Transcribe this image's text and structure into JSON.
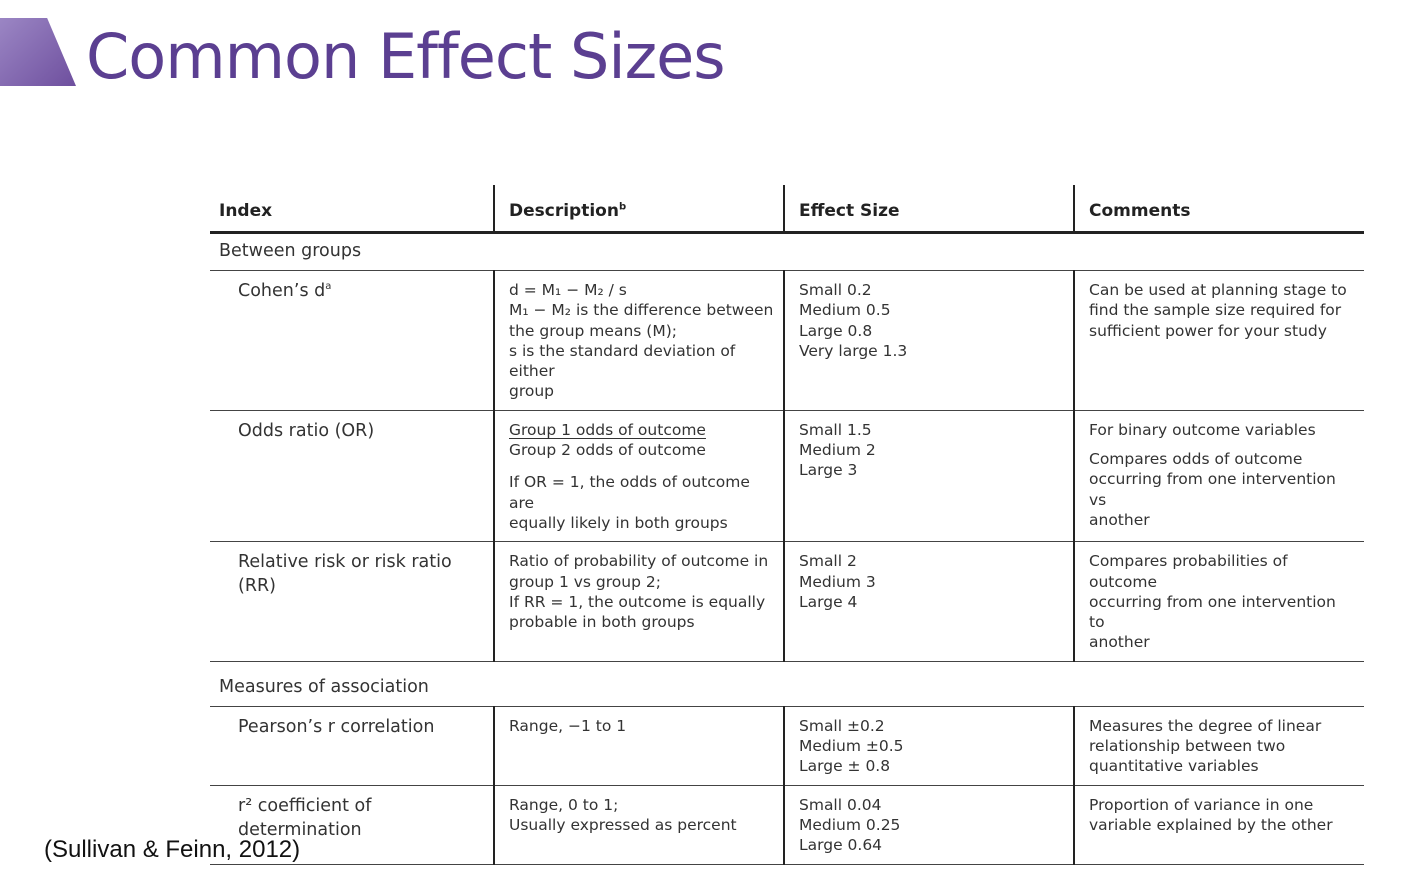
{
  "title": "Common Effect Sizes",
  "citation": "(Sullivan & Feinn, 2012)",
  "colors": {
    "title": "#5b3f91",
    "accent_shape": "#7c5fae"
  },
  "table": {
    "headers": [
      "Index",
      "Description",
      "Effect Size",
      "Comments"
    ],
    "header_description_sup": "b",
    "sections": [
      {
        "label": "Between groups",
        "rows": [
          {
            "index": "Cohen’s d",
            "index_sup": "a",
            "description": [
              "d = M₁ − M₂ / s",
              "M₁ − M₂ is the difference between",
              "the group means (M);",
              "s is the standard deviation of either",
              "group"
            ],
            "effect_size": [
              "Small 0.2",
              "Medium 0.5",
              "Large 0.8",
              "Very large 1.3"
            ],
            "comments": [
              "Can be used at planning stage to",
              "find the sample size required for",
              "sufficient power for your study"
            ]
          },
          {
            "index": "Odds ratio (OR)",
            "description_numerator": "Group 1 odds of outcome",
            "description_denominator": "Group 2 odds of outcome",
            "description": [
              "If OR = 1, the odds of outcome are",
              "equally likely in both groups"
            ],
            "effect_size": [
              "Small 1.5",
              "Medium 2",
              "Large 3"
            ],
            "comments_first": "For binary outcome variables",
            "comments": [
              "Compares odds of outcome",
              "occurring from one intervention vs",
              "another"
            ]
          },
          {
            "index": "Relative risk or risk ratio (RR)",
            "description": [
              "Ratio of probability of outcome in",
              "group 1 vs group 2;",
              "If RR = 1, the outcome is equally",
              "probable in both groups"
            ],
            "effect_size": [
              "Small 2",
              "Medium 3",
              "Large 4"
            ],
            "comments": [
              "Compares probabilities of outcome",
              "occurring from one intervention to",
              "another"
            ]
          }
        ]
      },
      {
        "label": "Measures of association",
        "rows": [
          {
            "index": "Pearson’s r correlation",
            "description": [
              "Range, −1 to 1"
            ],
            "effect_size": [
              "Small ±0.2",
              "Medium ±0.5",
              "Large ± 0.8"
            ],
            "comments": [
              "Measures the degree of linear",
              "relationship between two",
              "quantitative variables"
            ]
          },
          {
            "index_lines": [
              "r² coefficient of",
              "determination"
            ],
            "description": [
              "Range, 0 to 1;",
              "Usually expressed as percent"
            ],
            "effect_size": [
              "Small 0.04",
              "Medium 0.25",
              "Large 0.64"
            ],
            "comments": [
              "Proportion of variance in one",
              "variable explained by the other"
            ]
          }
        ]
      }
    ]
  }
}
